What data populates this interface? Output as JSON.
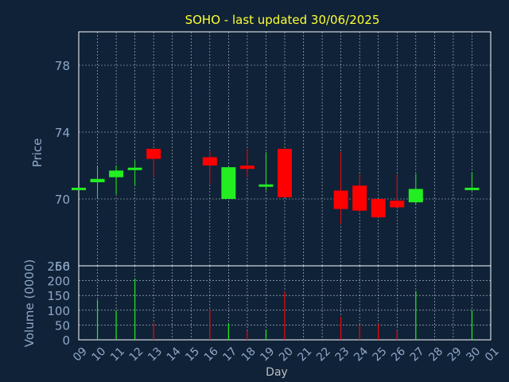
{
  "colors": {
    "background": "#0f2238",
    "axis_text": "#8fa8c8",
    "title": "#ffff33",
    "grid": "#ffffff",
    "up": "#22ee22",
    "down": "#ff0000",
    "wick": "#b8b8b8"
  },
  "chart_data": [
    {
      "type": "candlestick",
      "title": "SOHO - last updated 30/06/2025",
      "ylabel": "Price",
      "xlabel": "Day",
      "ylim": [
        66,
        80
      ],
      "yticks": [
        "66",
        "70",
        "74",
        "78"
      ],
      "grid": true,
      "candles": [
        {
          "day": "09",
          "open": 70.6,
          "high": 70.6,
          "low": 70.6,
          "close": 70.6
        },
        {
          "day": "10",
          "open": 71.0,
          "high": 72.0,
          "low": 70.0,
          "close": 71.2
        },
        {
          "day": "11",
          "open": 71.3,
          "high": 72.0,
          "low": 70.3,
          "close": 71.7
        },
        {
          "day": "12",
          "open": 71.8,
          "high": 72.3,
          "low": 70.8,
          "close": 71.8
        },
        {
          "day": "13",
          "open": 73.0,
          "high": 73.0,
          "low": 71.3,
          "close": 72.4
        },
        {
          "day": "16",
          "open": 72.5,
          "high": 72.9,
          "low": 70.9,
          "close": 72.0
        },
        {
          "day": "17",
          "open": 70.0,
          "high": 71.9,
          "low": 70.0,
          "close": 71.9
        },
        {
          "day": "18",
          "open": 72.0,
          "high": 73.0,
          "low": 71.3,
          "close": 71.8
        },
        {
          "day": "19",
          "open": 70.8,
          "high": 72.8,
          "low": 70.5,
          "close": 70.8
        },
        {
          "day": "20",
          "open": 73.0,
          "high": 73.0,
          "low": 70.1,
          "close": 70.1
        },
        {
          "day": "23",
          "open": 70.5,
          "high": 72.8,
          "low": 68.5,
          "close": 69.4
        },
        {
          "day": "24",
          "open": 70.8,
          "high": 71.5,
          "low": 69.2,
          "close": 69.3
        },
        {
          "day": "25",
          "open": 70.0,
          "high": 70.0,
          "low": 68.9,
          "close": 68.9
        },
        {
          "day": "26",
          "open": 69.9,
          "high": 71.5,
          "low": 69.5,
          "close": 69.5
        },
        {
          "day": "27",
          "open": 69.8,
          "high": 71.5,
          "low": 69.7,
          "close": 70.6
        },
        {
          "day": "30",
          "open": 70.5,
          "high": 71.6,
          "low": 70.5,
          "close": 70.6
        }
      ]
    },
    {
      "type": "bar",
      "ylabel": "Volume (0000)",
      "xlabel": "Day",
      "ylim": [
        0,
        250
      ],
      "yticks": [
        "0",
        "50",
        "100",
        "150",
        "200",
        "250"
      ],
      "x_tick_labels": [
        "09",
        "10",
        "11",
        "12",
        "13",
        "14",
        "15",
        "16",
        "17",
        "18",
        "19",
        "20",
        "21",
        "22",
        "23",
        "24",
        "25",
        "26",
        "27",
        "28",
        "29",
        "30",
        "01"
      ],
      "grid": true,
      "bars": [
        {
          "day": "10",
          "value": 135,
          "direction": "up"
        },
        {
          "day": "11",
          "value": 98,
          "direction": "up"
        },
        {
          "day": "12",
          "value": 207,
          "direction": "up"
        },
        {
          "day": "13",
          "value": 58,
          "direction": "down"
        },
        {
          "day": "16",
          "value": 102,
          "direction": "down"
        },
        {
          "day": "17",
          "value": 57,
          "direction": "up"
        },
        {
          "day": "18",
          "value": 30,
          "direction": "down"
        },
        {
          "day": "19",
          "value": 35,
          "direction": "up"
        },
        {
          "day": "20",
          "value": 162,
          "direction": "down"
        },
        {
          "day": "23",
          "value": 78,
          "direction": "down"
        },
        {
          "day": "24",
          "value": 50,
          "direction": "down"
        },
        {
          "day": "25",
          "value": 55,
          "direction": "down"
        },
        {
          "day": "26",
          "value": 32,
          "direction": "down"
        },
        {
          "day": "27",
          "value": 165,
          "direction": "up"
        },
        {
          "day": "30",
          "value": 100,
          "direction": "up"
        }
      ]
    }
  ]
}
